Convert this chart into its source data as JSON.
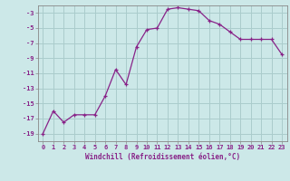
{
  "x": [
    0,
    1,
    2,
    3,
    4,
    5,
    6,
    7,
    8,
    9,
    10,
    11,
    12,
    13,
    14,
    15,
    16,
    17,
    18,
    19,
    20,
    21,
    22,
    23
  ],
  "y": [
    -19,
    -16,
    -17.5,
    -16.5,
    -16.5,
    -16.5,
    -14,
    -10.5,
    -12.5,
    -7.5,
    -5.2,
    -5.0,
    -2.5,
    -2.3,
    -2.5,
    -2.7,
    -4.0,
    -4.5,
    -5.5,
    -6.5,
    -6.5,
    -6.5,
    -6.5,
    -8.5
  ],
  "line_color": "#882288",
  "marker": "+",
  "bg_color": "#cce8e8",
  "grid_color": "#aacccc",
  "xlabel": "Windchill (Refroidissement éolien,°C)",
  "ylabel": "",
  "title": "",
  "xlim": [
    -0.5,
    23.5
  ],
  "ylim": [
    -20,
    -2
  ],
  "yticks": [
    -19,
    -17,
    -15,
    -13,
    -11,
    -9,
    -7,
    -5,
    -3
  ],
  "xticks": [
    0,
    1,
    2,
    3,
    4,
    5,
    6,
    7,
    8,
    9,
    10,
    11,
    12,
    13,
    14,
    15,
    16,
    17,
    18,
    19,
    20,
    21,
    22,
    23
  ],
  "tick_fontsize": 5,
  "xlabel_fontsize": 5.5,
  "line_width": 0.9,
  "marker_size": 3
}
